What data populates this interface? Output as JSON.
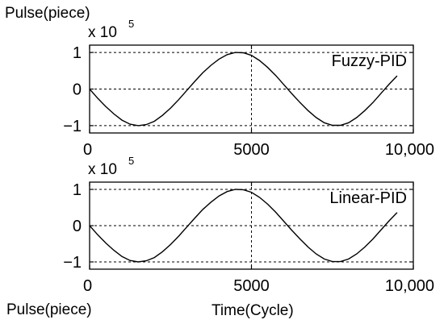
{
  "labels": {
    "top_ylabel": "Pulse(piece)",
    "bottom_ylabel": "Pulse(piece)",
    "xlabel": "Time(Cycle)"
  },
  "chart_data": [
    {
      "type": "line",
      "xlim": [
        0,
        10000
      ],
      "ylim": [
        -1.2,
        1.2
      ],
      "y_multiplier_base": "x 10",
      "y_multiplier_exp": "5",
      "xticks": [
        {
          "value": 0,
          "label": "0"
        },
        {
          "value": 5000,
          "label": "5000"
        },
        {
          "value": 10000,
          "label": "10,000"
        }
      ],
      "yticks": [
        {
          "value": 1,
          "label": "1"
        },
        {
          "value": 0,
          "label": "0"
        },
        {
          "value": -1,
          "label": "−1"
        }
      ],
      "grid": true,
      "series": [
        {
          "name": "Fuzzy-PID",
          "color": "#000000",
          "x": [
            0,
            250,
            500,
            750,
            1000,
            1250,
            1500,
            1750,
            2000,
            2250,
            2500,
            2750,
            3000,
            3250,
            3500,
            3750,
            4000,
            4250,
            4500,
            4750,
            5000,
            5250,
            5500,
            5750,
            6000,
            6250,
            6500,
            6750,
            7000,
            7250,
            7500,
            7750,
            8000,
            8250,
            8500,
            8750,
            9000,
            9250,
            9500
          ],
          "y": [
            0,
            -0.25,
            -0.48,
            -0.68,
            -0.85,
            -0.96,
            -1.0,
            -0.97,
            -0.88,
            -0.72,
            -0.52,
            -0.29,
            -0.04,
            0.21,
            0.45,
            0.65,
            0.82,
            0.94,
            1.0,
            0.99,
            0.92,
            0.78,
            0.59,
            0.37,
            0.12,
            -0.13,
            -0.37,
            -0.59,
            -0.78,
            -0.92,
            -0.99,
            -0.99,
            -0.92,
            -0.78,
            -0.59,
            -0.37,
            -0.12,
            0.13,
            0.36
          ]
        }
      ]
    },
    {
      "type": "line",
      "xlim": [
        0,
        10000
      ],
      "ylim": [
        -1.2,
        1.2
      ],
      "y_multiplier_base": "x 10",
      "y_multiplier_exp": "5",
      "xticks": [
        {
          "value": 0,
          "label": "0"
        },
        {
          "value": 5000,
          "label": "5000"
        },
        {
          "value": 10000,
          "label": "10,000"
        }
      ],
      "yticks": [
        {
          "value": 1,
          "label": "1"
        },
        {
          "value": 0,
          "label": "0"
        },
        {
          "value": -1,
          "label": "−1"
        }
      ],
      "grid": true,
      "series": [
        {
          "name": "Linear-PID",
          "color": "#000000",
          "x": [
            0,
            250,
            500,
            750,
            1000,
            1250,
            1500,
            1750,
            2000,
            2250,
            2500,
            2750,
            3000,
            3250,
            3500,
            3750,
            4000,
            4250,
            4500,
            4750,
            5000,
            5250,
            5500,
            5750,
            6000,
            6250,
            6500,
            6750,
            7000,
            7250,
            7500,
            7750,
            8000,
            8250,
            8500,
            8750,
            9000,
            9250,
            9500
          ],
          "y": [
            0,
            -0.25,
            -0.48,
            -0.68,
            -0.85,
            -0.96,
            -1.0,
            -0.97,
            -0.88,
            -0.72,
            -0.52,
            -0.29,
            -0.04,
            0.21,
            0.45,
            0.65,
            0.82,
            0.94,
            1.0,
            0.99,
            0.92,
            0.78,
            0.59,
            0.37,
            0.12,
            -0.13,
            -0.37,
            -0.59,
            -0.78,
            -0.92,
            -0.99,
            -0.99,
            -0.92,
            -0.78,
            -0.59,
            -0.37,
            -0.12,
            0.13,
            0.36
          ]
        }
      ]
    }
  ]
}
